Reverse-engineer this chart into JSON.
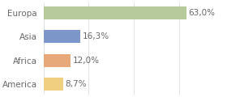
{
  "categories": [
    "Europa",
    "Asia",
    "Africa",
    "America"
  ],
  "values": [
    63.0,
    16.3,
    12.0,
    8.7
  ],
  "labels": [
    "63,0%",
    "16,3%",
    "12,0%",
    "8,7%"
  ],
  "bar_colors": [
    "#b5c99a",
    "#7b96c8",
    "#e8a97a",
    "#f0d080"
  ],
  "background_color": "#ffffff",
  "plot_bg_color": "#ffffff",
  "xlim": [
    0,
    80
  ],
  "bar_height": 0.55,
  "label_fontsize": 7.5,
  "tick_fontsize": 7.5,
  "grid_color": "#e0e0e0",
  "text_color": "#666666"
}
